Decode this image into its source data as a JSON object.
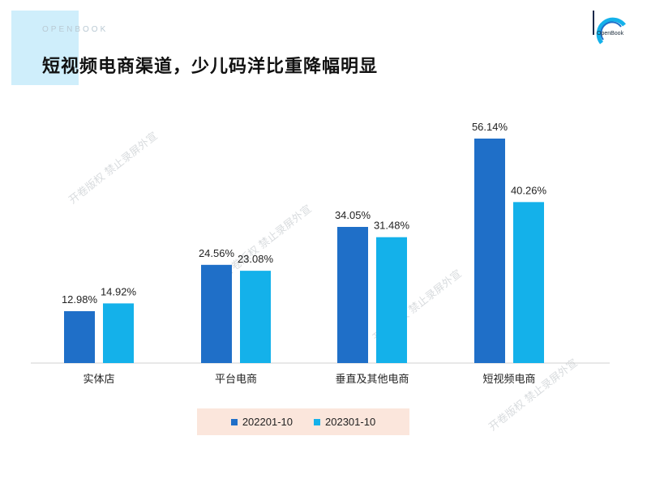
{
  "header": {
    "tag": "OPENBOOK",
    "title": "短视频电商渠道，少儿码洋比重降幅明显",
    "logo_text": "OpenBook"
  },
  "watermark": "开卷版权 禁止录屏外宣",
  "colors": {
    "series1": "#1f6fc8",
    "series2": "#14b1ea",
    "legend_bg": "#fbe6dc"
  },
  "chart_data": {
    "type": "bar",
    "title": "短视频电商渠道，少儿码洋比重降幅明显",
    "categories": [
      "实体店",
      "平台电商",
      "垂直及其他电商",
      "短视频电商"
    ],
    "series": [
      {
        "name": "202201-10",
        "values": [
          12.98,
          24.56,
          34.05,
          56.14
        ],
        "labels": [
          "12.98%",
          "24.56%",
          "34.05%",
          "56.14%"
        ]
      },
      {
        "name": "202301-10",
        "values": [
          14.92,
          23.08,
          31.48,
          40.26
        ],
        "labels": [
          "14.92%",
          "23.08%",
          "31.48%",
          "40.26%"
        ]
      }
    ],
    "xlabel": "",
    "ylabel": "",
    "ylim": [
      0,
      60
    ],
    "unit": "%",
    "legend": "bottom"
  }
}
